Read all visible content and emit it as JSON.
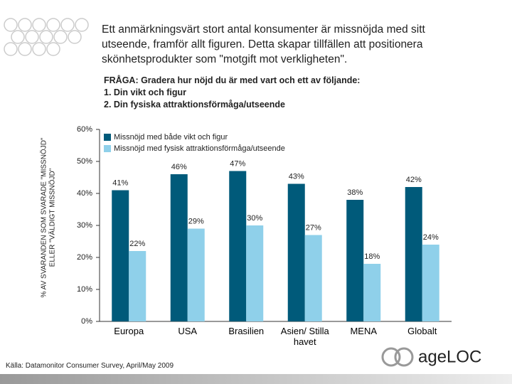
{
  "title": "Ett anmärkningsvärt stort antal konsumenter är missnöjda med sitt utseende, framför allt figuren. Detta skapar tillfällen att positionera skönhetsprodukter som \"motgift mot verkligheten\".",
  "question": [
    "FRÅGA: Gradera hur nöjd du är med vart och ett av följande:",
    "1. Din vikt och figur",
    "2. Din fysiska attraktionsförmåga/utseende"
  ],
  "source": "Källa: Datamonitor Consumer Survey, April/May 2009",
  "logo": "ageLOC",
  "chart_data": {
    "type": "bar",
    "y_label": [
      "% AV SVARANDEN SOM SVARADE \"MISSNÖJD\"",
      "ELLER \"VÄLDIGT MISSNÖJD\""
    ],
    "categories": [
      "Europa",
      "USA",
      "Brasilien",
      "Asien/ Stilla havet",
      "MENA",
      "Globalt"
    ],
    "series": [
      {
        "name": "Missnöjd med både vikt och figur",
        "color": "#005a7a",
        "values": [
          41,
          46,
          47,
          43,
          38,
          42
        ],
        "value_labels": [
          "41%",
          "46%",
          "47%",
          "43%",
          "38%",
          "42%"
        ]
      },
      {
        "name": "Missnöjd med fysisk attraktionsförmåga/utseende",
        "color": "#8fd0ea",
        "values": [
          22,
          29,
          30,
          27,
          18,
          24
        ],
        "value_labels": [
          "22%",
          "29%",
          "30%",
          "27%",
          "18%",
          "24%"
        ]
      }
    ],
    "ylim": [
      0,
      60
    ],
    "yticks": [
      {
        "value": 0,
        "label": "0%"
      },
      {
        "value": 10,
        "label": "10%"
      },
      {
        "value": 20,
        "label": "20%"
      },
      {
        "value": 30,
        "label": "30%"
      },
      {
        "value": 40,
        "label": "40%"
      },
      {
        "value": 50,
        "label": "50%"
      },
      {
        "value": 60,
        "label": "60%"
      }
    ],
    "legend": "upper left"
  }
}
